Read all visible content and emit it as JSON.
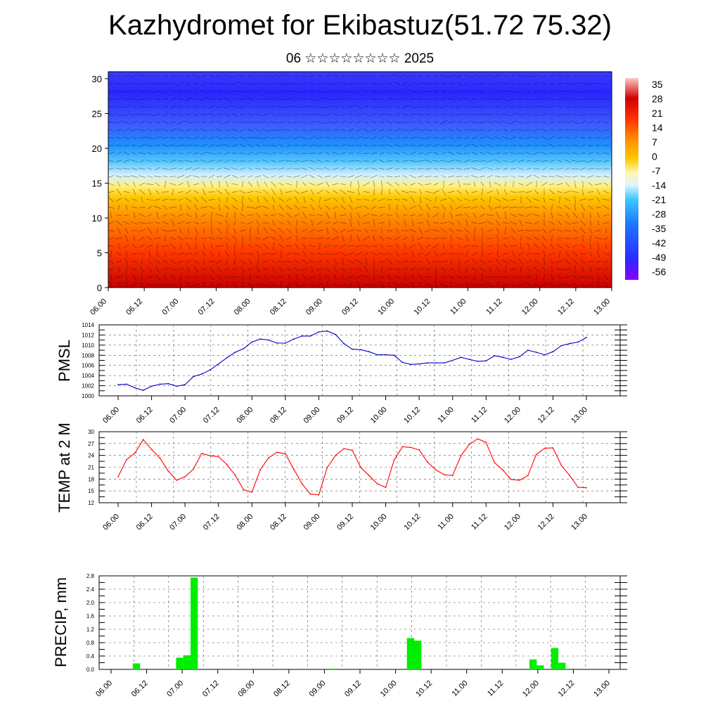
{
  "title": "Kazhydromet for Ekibastuz(51.72 75.32)",
  "subtitle": "06 ☆☆☆☆☆☆☆☆ 2025",
  "chart_data": [
    {
      "type": "heatmap",
      "panel": "temperature-cross-section",
      "yticks": [
        0,
        5,
        10,
        15,
        20,
        25,
        30
      ],
      "ylim": [
        0,
        31
      ],
      "xticks": [
        "06.00",
        "06.12",
        "07.00",
        "07.12",
        "08.00",
        "08.12",
        "09.00",
        "09.12",
        "10.00",
        "10.12",
        "11.00",
        "11.12",
        "12.00",
        "12.12",
        "13.00"
      ],
      "colorbar_labels": [
        "35",
        "28",
        "21",
        "14",
        "7",
        "0",
        "-7",
        "-14",
        "-21",
        "-28",
        "-35",
        "-42",
        "-49",
        "-56"
      ],
      "colorbar_range": [
        -60,
        38
      ],
      "wind_vectors": true
    },
    {
      "type": "line",
      "ylabel": "PMSL",
      "ylim": [
        1000,
        1014
      ],
      "yticks": [
        "1000",
        "1002",
        "1004",
        "1006",
        "1008",
        "1010",
        "1012",
        "1014"
      ],
      "xticks": [
        "06.00",
        "06.12",
        "07.00",
        "07.12",
        "08.00",
        "08.12",
        "09.00",
        "09.12",
        "10.00",
        "10.12",
        "11.00",
        "11.12",
        "12.00",
        "12.12",
        "13.00"
      ],
      "color": "#0000cc",
      "values": [
        1002.2,
        1002.3,
        1001.6,
        1001.1,
        1001.9,
        1002.3,
        1002.4,
        1001.9,
        1002.2,
        1003.8,
        1004.3,
        1005.1,
        1006.3,
        1007.5,
        1008.6,
        1009.3,
        1010.6,
        1011.2,
        1011.0,
        1010.4,
        1010.4,
        1011.2,
        1011.8,
        1011.8,
        1012.6,
        1012.8,
        1012.1,
        1010.3,
        1009.2,
        1009.1,
        1008.7,
        1008.1,
        1008.1,
        1008.0,
        1006.6,
        1006.2,
        1006.3,
        1006.5,
        1006.5,
        1006.5,
        1007.0,
        1007.6,
        1007.2,
        1006.8,
        1006.9,
        1007.9,
        1007.6,
        1007.2,
        1007.7,
        1009.0,
        1008.6,
        1008.1,
        1008.7,
        1009.9,
        1010.3,
        1010.6,
        1011.5
      ]
    },
    {
      "type": "line",
      "ylabel": "TEMP at 2 M",
      "ylim": [
        12,
        30
      ],
      "yticks": [
        "12",
        "15",
        "18",
        "21",
        "24",
        "27",
        "30"
      ],
      "xticks": [
        "06.00",
        "06.12",
        "07.00",
        "07.12",
        "08.00",
        "08.12",
        "09.00",
        "09.12",
        "10.00",
        "10.12",
        "11.00",
        "11.12",
        "12.00",
        "12.12",
        "13.00"
      ],
      "color": "#ff0000",
      "values": [
        18.6,
        22.9,
        24.6,
        28.0,
        25.5,
        23.3,
        20.0,
        17.7,
        18.6,
        20.5,
        24.5,
        23.9,
        23.7,
        21.7,
        19.0,
        15.3,
        14.7,
        20.4,
        23.4,
        24.8,
        24.4,
        20.5,
        16.8,
        14.2,
        14.0,
        20.9,
        24.0,
        25.7,
        25.3,
        21.0,
        18.9,
        16.8,
        15.9,
        22.8,
        26.2,
        26.0,
        25.4,
        22.3,
        20.3,
        19.1,
        18.9,
        23.9,
        26.8,
        28.2,
        27.3,
        22.2,
        20.3,
        17.9,
        17.7,
        18.9,
        24.2,
        25.8,
        25.9,
        21.5,
        18.9,
        15.9,
        15.8
      ]
    },
    {
      "type": "bar",
      "ylabel": "PRECIP, mm",
      "ylim": [
        0,
        2.8
      ],
      "yticks": [
        "0.0",
        "0.4",
        "0.8",
        "1.2",
        "1.6",
        "2.0",
        "2.4",
        "2.8"
      ],
      "xticks": [
        "06.00",
        "06.12",
        "07.00",
        "07.12",
        "08.00",
        "08.12",
        "09.00",
        "09.12",
        "10.00",
        "10.12",
        "11.00",
        "11.12",
        "12.00",
        "12.12",
        "13.00"
      ],
      "color": "#00ee00",
      "values": [
        0,
        0,
        0,
        0,
        0.18,
        0,
        0,
        0,
        0,
        0,
        0.35,
        0.42,
        2.75,
        0,
        0,
        0,
        0,
        0,
        0,
        0,
        0,
        0,
        0,
        0,
        0,
        0,
        0,
        0,
        0,
        0,
        0,
        0.02,
        0,
        0,
        0,
        0,
        0,
        0,
        0,
        0,
        0,
        0,
        0.94,
        0.86,
        0,
        0,
        0,
        0,
        0,
        0,
        0,
        0,
        0,
        0,
        0,
        0,
        0,
        0,
        0,
        0.3,
        0.12,
        0,
        0.64,
        0.2,
        0,
        0,
        0,
        0,
        0,
        0,
        0
      ]
    }
  ]
}
